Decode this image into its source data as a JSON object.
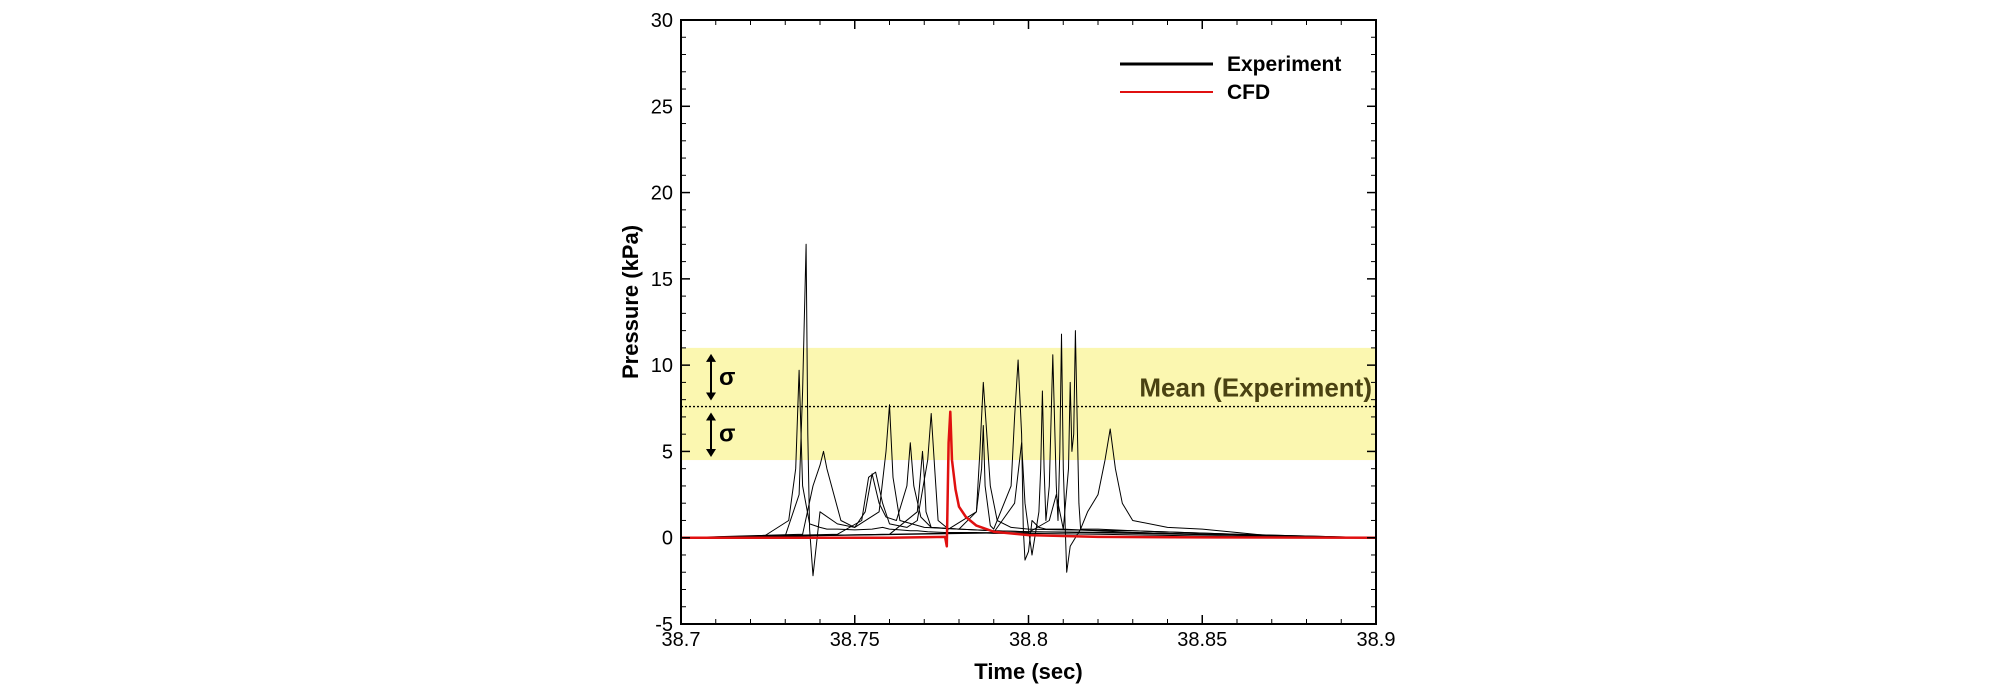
{
  "chart_data": {
    "type": "line",
    "xlabel": "Time (sec)",
    "ylabel": "Pressure (kPa)",
    "xlim": [
      38.7,
      38.9
    ],
    "ylim": [
      -5,
      30
    ],
    "x_ticks": [
      "38.7",
      "38.75",
      "38.8",
      "38.85",
      "38.9"
    ],
    "y_ticks": [
      "-5",
      "0",
      "5",
      "10",
      "15",
      "20",
      "25",
      "30"
    ],
    "grid": false,
    "legend_position": "top-right",
    "legend": [
      {
        "label": "Experiment",
        "color": "#000000"
      },
      {
        "label": "CFD",
        "color": "#e01010"
      }
    ],
    "band": {
      "mean": 7.6,
      "lower": 4.5,
      "upper": 11.0,
      "color": "#fbf7b0"
    },
    "mean_label": "Mean (Experiment)",
    "mean_label_color": "#4a4212",
    "sigma_symbol": "σ",
    "series": [
      {
        "name": "Experiment",
        "color": "#000000",
        "runs": [
          {
            "x": [
              38.7,
              38.724,
              38.731,
              38.733,
              38.734,
              38.735,
              38.737,
              38.74,
              38.742,
              38.745,
              38.75,
              38.755,
              38.758,
              38.76,
              38.763,
              38.766,
              38.768,
              38.771,
              38.776,
              38.78,
              38.785,
              38.79,
              38.8,
              38.82,
              38.85,
              38.9
            ],
            "y": [
              0,
              0.1,
              1.0,
              4.0,
              9.7,
              3.0,
              0.8,
              0.6,
              0.5,
              0.5,
              0.45,
              0.5,
              0.6,
              0.5,
              0.45,
              0.4,
              0.4,
              0.35,
              0.3,
              0.3,
              0.3,
              0.25,
              0.25,
              0.2,
              0.1,
              0
            ]
          },
          {
            "x": [
              38.7,
              38.73,
              38.734,
              38.735,
              38.736,
              38.7365,
              38.737,
              38.738,
              38.74,
              38.745,
              38.75,
              38.757,
              38.759,
              38.76,
              38.761,
              38.763,
              38.77,
              38.78,
              38.79,
              38.8,
              38.83,
              38.86,
              38.9
            ],
            "y": [
              0,
              0.1,
              2.5,
              8.5,
              17.0,
              6.0,
              0.5,
              -2.2,
              1.5,
              0.8,
              0.6,
              1.5,
              5.0,
              7.7,
              3.5,
              1.0,
              0.6,
              0.5,
              0.4,
              0.35,
              0.3,
              0.15,
              0
            ]
          },
          {
            "x": [
              38.7,
              38.735,
              38.738,
              38.74,
              38.741,
              38.742,
              38.744,
              38.746,
              38.75,
              38.753,
              38.755,
              38.757,
              38.759,
              38.762,
              38.765,
              38.766,
              38.767,
              38.769,
              38.772,
              38.78,
              38.79,
              38.8,
              38.83,
              38.9
            ],
            "y": [
              0,
              0.2,
              3.0,
              4.2,
              5.0,
              4.0,
              2.5,
              1.0,
              0.6,
              1.5,
              3.7,
              2.0,
              1.2,
              1.0,
              3.0,
              5.5,
              3.0,
              1.2,
              0.6,
              0.5,
              0.4,
              0.35,
              0.25,
              0
            ]
          },
          {
            "x": [
              38.7,
              38.745,
              38.752,
              38.754,
              38.756,
              38.758,
              38.76,
              38.765,
              38.768,
              38.771,
              38.772,
              38.773,
              38.774,
              38.777,
              38.785,
              38.786,
              38.787,
              38.788,
              38.789,
              38.791,
              38.795,
              38.8,
              38.81,
              38.83,
              38.86,
              38.9
            ],
            "y": [
              0,
              0.2,
              1.0,
              3.5,
              3.8,
              2.0,
              0.8,
              0.6,
              1.0,
              4.5,
              7.2,
              4.0,
              1.0,
              0.5,
              1.5,
              5.0,
              9.0,
              6.0,
              3.0,
              1.0,
              0.6,
              0.5,
              0.45,
              0.4,
              0.2,
              0
            ]
          },
          {
            "x": [
              38.7,
              38.76,
              38.768,
              38.7695,
              38.77,
              38.7705,
              38.772,
              38.78,
              38.785,
              38.7865,
              38.787,
              38.7875,
              38.789,
              38.79,
              38.795,
              38.796,
              38.797,
              38.798,
              38.7985,
              38.799,
              38.8,
              38.801,
              38.802,
              38.803,
              38.805,
              38.81,
              38.82,
              38.83,
              38.86,
              38.9
            ],
            "y": [
              0,
              0.2,
              1.5,
              5.0,
              3.5,
              1.5,
              0.6,
              0.5,
              1.5,
              4.0,
              6.5,
              3.0,
              0.7,
              0.5,
              3.0,
              7.0,
              10.3,
              6.0,
              0.5,
              -1.3,
              -0.8,
              1.0,
              0.8,
              0.6,
              0.5,
              0.5,
              0.4,
              0.3,
              0.15,
              0
            ]
          },
          {
            "x": [
              38.7,
              38.79,
              38.796,
              38.798,
              38.799,
              38.801,
              38.803,
              38.8035,
              38.804,
              38.8045,
              38.805,
              38.806,
              38.807,
              38.808,
              38.8085,
              38.809,
              38.8095,
              38.81,
              38.811,
              38.812,
              38.815,
              38.82,
              38.83,
              38.86,
              38.9
            ],
            "y": [
              0,
              0.3,
              2.0,
              5.5,
              2.0,
              -1.0,
              1.5,
              4.0,
              8.5,
              4.0,
              1.0,
              3.0,
              10.6,
              3.0,
              1.0,
              5.0,
              11.8,
              4.0,
              -2.0,
              -0.5,
              0.5,
              0.5,
              0.4,
              0.2,
              0
            ]
          },
          {
            "x": [
              38.7,
              38.8,
              38.806,
              38.808,
              38.81,
              38.8115,
              38.812,
              38.8125,
              38.813,
              38.8135,
              38.814,
              38.8145,
              38.815,
              38.817,
              38.82,
              38.822,
              38.8235,
              38.825,
              38.827,
              38.83,
              38.84,
              38.85,
              38.86,
              38.87,
              38.9
            ],
            "y": [
              0,
              0.3,
              1.0,
              2.5,
              0.5,
              4.0,
              9.0,
              5.0,
              6.0,
              12.0,
              7.0,
              2.0,
              0.5,
              1.5,
              2.5,
              4.5,
              6.3,
              4.0,
              2.0,
              1.0,
              0.6,
              0.5,
              0.3,
              0.1,
              0
            ]
          }
        ]
      },
      {
        "name": "CFD",
        "color": "#e01010",
        "x": [
          38.7,
          38.76,
          38.776,
          38.7765,
          38.777,
          38.7775,
          38.778,
          38.779,
          38.78,
          38.782,
          38.785,
          38.79,
          38.8,
          38.82,
          38.85,
          38.9
        ],
        "y": [
          0,
          0,
          0.05,
          -0.5,
          5.5,
          7.3,
          4.5,
          2.8,
          1.8,
          1.2,
          0.7,
          0.35,
          0.15,
          0.05,
          0.02,
          0
        ]
      }
    ]
  }
}
